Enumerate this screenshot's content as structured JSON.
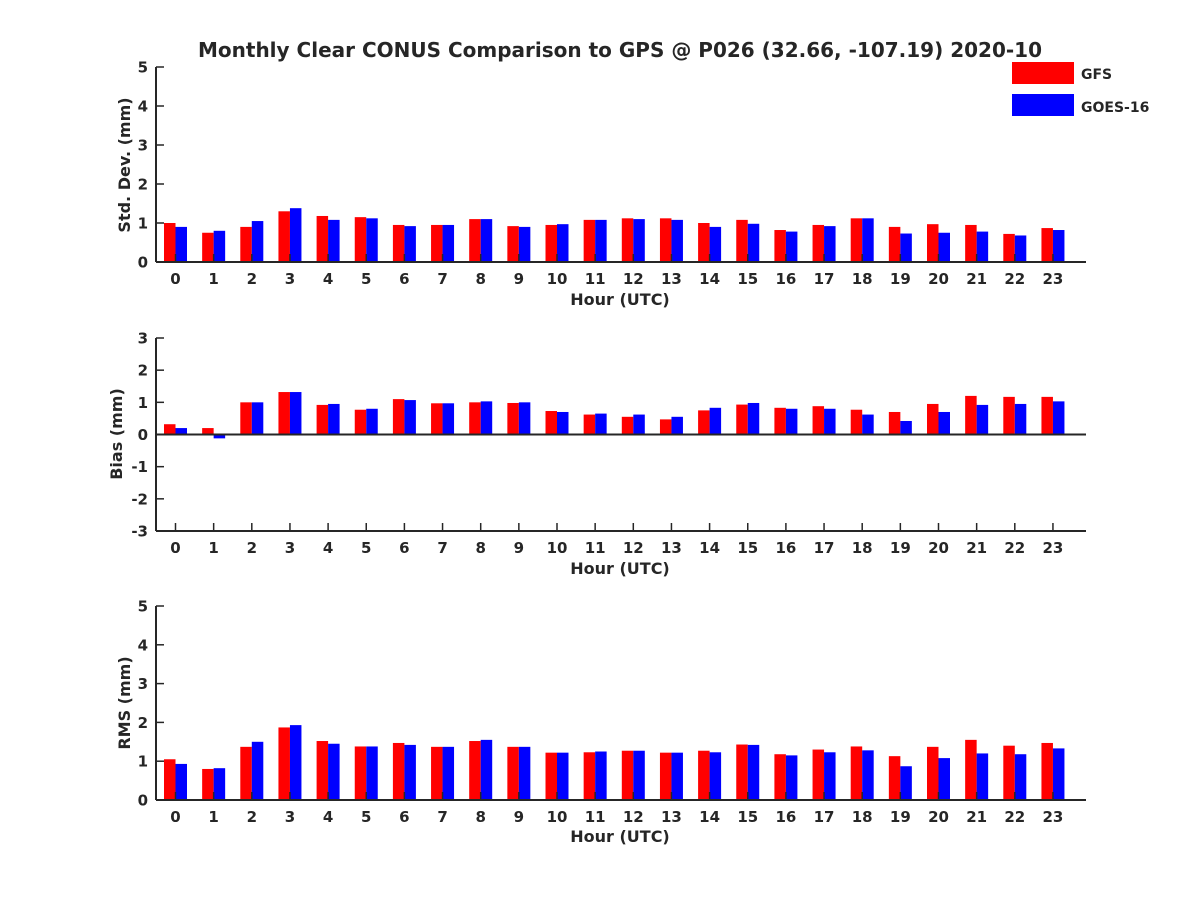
{
  "chart_data": {
    "title": "Monthly Clear CONUS Comparison to GPS @ P026 (32.66, -107.19) 2020-10",
    "legend": {
      "placement": "top-right",
      "entries": [
        {
          "name": "GFS",
          "color": "#ff0000"
        },
        {
          "name": "GOES-16",
          "color": "#0000ff"
        }
      ]
    },
    "colors": {
      "gfs": "#ff0000",
      "goes16": "#0000ff",
      "axis": "#262626"
    },
    "categories": [
      "0",
      "1",
      "2",
      "3",
      "4",
      "5",
      "6",
      "7",
      "8",
      "9",
      "10",
      "11",
      "12",
      "13",
      "14",
      "15",
      "16",
      "17",
      "18",
      "19",
      "20",
      "21",
      "22",
      "23"
    ],
    "charts": [
      {
        "type": "bar",
        "ylabel": "Std. Dev. (mm)",
        "xlabel": "Hour (UTC)",
        "ylim": [
          0,
          5
        ],
        "yticks": [
          "0",
          "1",
          "2",
          "3",
          "4",
          "5"
        ],
        "grid": false,
        "series": [
          {
            "name": "GFS",
            "values": [
              1.0,
              0.75,
              0.9,
              1.3,
              1.18,
              1.15,
              0.95,
              0.95,
              1.1,
              0.92,
              0.95,
              1.08,
              1.12,
              1.12,
              1.0,
              1.08,
              0.82,
              0.95,
              1.12,
              0.9,
              0.97,
              0.95,
              0.72,
              0.87
            ]
          },
          {
            "name": "GOES-16",
            "values": [
              0.9,
              0.8,
              1.05,
              1.38,
              1.08,
              1.12,
              0.92,
              0.95,
              1.1,
              0.9,
              0.97,
              1.08,
              1.1,
              1.08,
              0.9,
              0.98,
              0.78,
              0.92,
              1.12,
              0.73,
              0.75,
              0.78,
              0.68,
              0.82
            ]
          }
        ]
      },
      {
        "type": "bar",
        "ylabel": "Bias (mm)",
        "xlabel": "Hour (UTC)",
        "ylim": [
          -3,
          3
        ],
        "yticks": [
          "-3",
          "-2",
          "-1",
          "0",
          "1",
          "2",
          "3"
        ],
        "grid": false,
        "series": [
          {
            "name": "GFS",
            "values": [
              0.32,
              0.2,
              1.0,
              1.32,
              0.92,
              0.77,
              1.1,
              0.97,
              1.0,
              0.98,
              0.73,
              0.62,
              0.55,
              0.47,
              0.75,
              0.93,
              0.83,
              0.88,
              0.77,
              0.7,
              0.95,
              1.2,
              1.17,
              1.17
            ]
          },
          {
            "name": "GOES-16",
            "values": [
              0.2,
              -0.12,
              1.0,
              1.32,
              0.95,
              0.8,
              1.07,
              0.97,
              1.03,
              1.0,
              0.7,
              0.65,
              0.62,
              0.55,
              0.83,
              0.98,
              0.8,
              0.8,
              0.62,
              0.42,
              0.7,
              0.92,
              0.95,
              1.03
            ]
          }
        ]
      },
      {
        "type": "bar",
        "ylabel": "RMS (mm)",
        "xlabel": "Hour (UTC)",
        "ylim": [
          0,
          5
        ],
        "yticks": [
          "0",
          "1",
          "2",
          "3",
          "4",
          "5"
        ],
        "grid": false,
        "series": [
          {
            "name": "GFS",
            "values": [
              1.05,
              0.8,
              1.37,
              1.87,
              1.52,
              1.38,
              1.47,
              1.37,
              1.52,
              1.37,
              1.22,
              1.23,
              1.27,
              1.22,
              1.27,
              1.43,
              1.18,
              1.3,
              1.38,
              1.13,
              1.37,
              1.55,
              1.4,
              1.47
            ]
          },
          {
            "name": "GOES-16",
            "values": [
              0.93,
              0.82,
              1.5,
              1.93,
              1.45,
              1.38,
              1.42,
              1.37,
              1.55,
              1.37,
              1.22,
              1.25,
              1.27,
              1.22,
              1.23,
              1.42,
              1.15,
              1.23,
              1.28,
              0.87,
              1.08,
              1.2,
              1.18,
              1.33
            ]
          }
        ]
      }
    ]
  }
}
